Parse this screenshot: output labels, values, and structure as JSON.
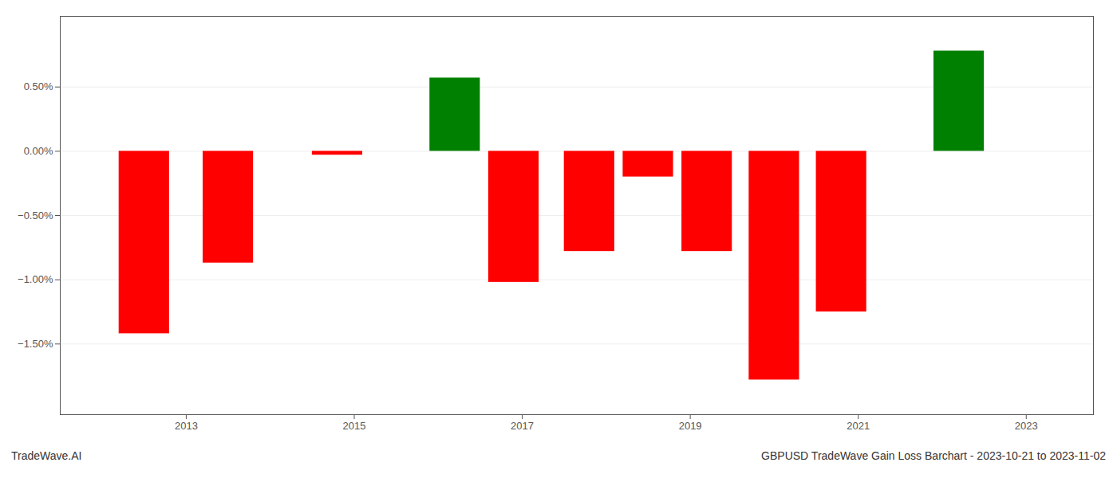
{
  "chart_data": {
    "type": "bar",
    "x": [
      2012.5,
      2013.5,
      2014.8,
      2016.2,
      2016.9,
      2017.8,
      2018.5,
      2019.2,
      2020.0,
      2020.8,
      2022.2
    ],
    "values": [
      -1.42,
      -0.87,
      -0.03,
      0.57,
      -1.02,
      -0.78,
      -0.2,
      -0.78,
      -1.78,
      -1.25,
      0.78
    ],
    "colors": [
      "#ff0000",
      "#ff0000",
      "#ff0000",
      "#008000",
      "#ff0000",
      "#ff0000",
      "#ff0000",
      "#ff0000",
      "#ff0000",
      "#ff0000",
      "#008000"
    ],
    "xlim": [
      2011.5,
      2023.8
    ],
    "xticks": [
      2013,
      2015,
      2017,
      2019,
      2021,
      2023
    ],
    "ylim": [
      -2.05,
      1.05
    ],
    "yticks": [
      {
        "value": -1.5,
        "label": "−1.50%"
      },
      {
        "value": -1.0,
        "label": "−1.00%"
      },
      {
        "value": -0.5,
        "label": "−0.50%"
      },
      {
        "value": 0.0,
        "label": "0.00%"
      },
      {
        "value": 0.5,
        "label": "0.50%"
      }
    ],
    "grid": true,
    "annotations": [
      "TradeWave.AI",
      "GBPUSD TradeWave Gain Loss Barchart - 2023-10-21 to 2023-11-02"
    ]
  }
}
